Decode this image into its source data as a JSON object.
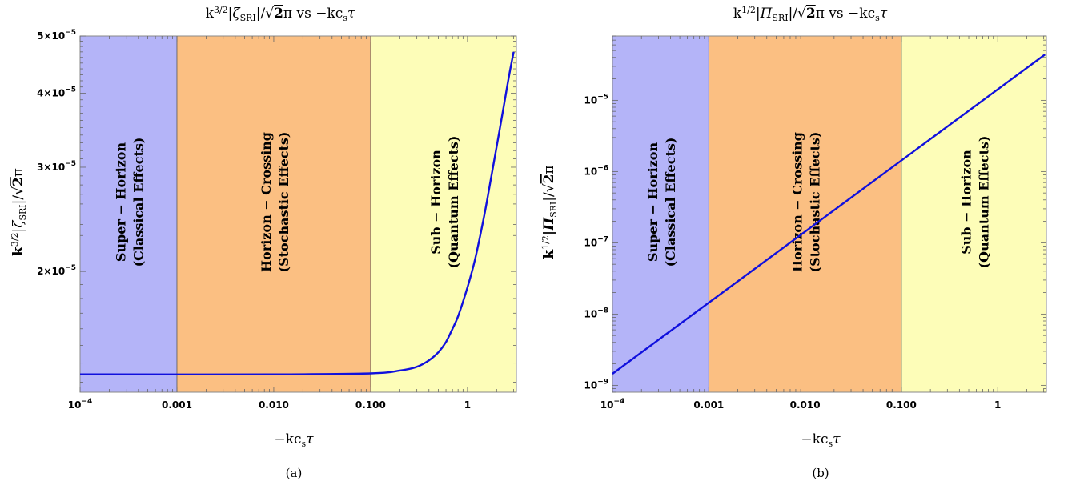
{
  "chart_data": [
    {
      "type": "line",
      "panel_label": "(a)",
      "title": "k^{3/2}|ζ_SRI|/√2π vs −kc_sτ",
      "title_parts": {
        "k": "k",
        "exp": "3/2",
        "var": "|ζ",
        "sub": "SRI",
        "tail": "|/",
        "root": "√",
        "two": "2",
        "pi": "π vs −kc",
        "cs": "s",
        "tau": "τ"
      },
      "xlabel": "−kc_sτ",
      "xlabel_parts": {
        "main": "−kc",
        "sub": "s",
        "tail": "τ"
      },
      "ylabel": "k^{3/2}|ζ_SRI|/√2π",
      "ylabel_parts": {
        "k": "k",
        "exp": "3/2",
        "var": "|ζ",
        "sub": "SRI",
        "tail": "|/",
        "root": "√",
        "two": "2",
        "pi": "π"
      },
      "xscale": "log",
      "yscale": "log",
      "xlim": [
        0.0001,
        3.2
      ],
      "ylim": [
        1.25e-05,
        5e-05
      ],
      "x_ticks": [
        {
          "value": 0.0001,
          "base": "10",
          "exp": "−4",
          "label": ""
        },
        {
          "value": 0.001,
          "label": "0.001"
        },
        {
          "value": 0.01,
          "label": "0.010"
        },
        {
          "value": 0.1,
          "label": "0.100"
        },
        {
          "value": 1,
          "label": "1"
        }
      ],
      "y_ticks": [
        {
          "value": 2e-05,
          "mant": "2",
          "times": "×",
          "base": "10",
          "exp": "−5"
        },
        {
          "value": 3e-05,
          "mant": "3",
          "times": "×",
          "base": "10",
          "exp": "−5"
        },
        {
          "value": 4e-05,
          "mant": "4",
          "times": "×",
          "base": "10",
          "exp": "−5"
        },
        {
          "value": 5e-05,
          "mant": "5",
          "times": "×",
          "base": "10",
          "exp": "−5"
        }
      ],
      "regions": [
        {
          "x0": 0.0001,
          "x1": 0.001,
          "color": "#b4b4f8",
          "line1": "Super − Horizon",
          "line2": "(Classical Effects)"
        },
        {
          "x0": 0.001,
          "x1": 0.1,
          "color": "#fbbf82",
          "line1": "Horizon − Crossing",
          "line2": "(Stochastic Effects)"
        },
        {
          "x0": 0.1,
          "x1": 3.2,
          "color": "#fdfdb8",
          "line1": "Sub − Horizon",
          "line2": "(Quantum Effects)"
        }
      ],
      "series": [
        {
          "color": "#1010dd",
          "points": [
            [
              0.0001,
              1.34e-05
            ],
            [
              0.01,
              1.34e-05
            ],
            [
              0.1,
              1.345e-05
            ],
            [
              0.2,
              1.36e-05
            ],
            [
              0.3,
              1.38e-05
            ],
            [
              0.4,
              1.415e-05
            ],
            [
              0.5,
              1.46e-05
            ],
            [
              0.6,
              1.52e-05
            ],
            [
              0.7,
              1.6e-05
            ],
            [
              0.8,
              1.68e-05
            ],
            [
              1.0,
              1.88e-05
            ],
            [
              1.2,
              2.1e-05
            ],
            [
              1.5,
              2.5e-05
            ],
            [
              1.8,
              2.95e-05
            ],
            [
              2.1,
              3.4e-05
            ],
            [
              2.4,
              3.85e-05
            ],
            [
              2.7,
              4.3e-05
            ],
            [
              3.0,
              4.7e-05
            ]
          ]
        }
      ]
    },
    {
      "type": "line",
      "panel_label": "(b)",
      "title": "k^{1/2}|Π_SRI|/√2π vs −kc_sτ",
      "title_parts": {
        "k": "k",
        "exp": "1/2",
        "var": "|Π",
        "sub": "SRI",
        "tail": "|/",
        "root": "√",
        "two": "2",
        "pi": "π vs −kc",
        "cs": "s",
        "tau": "τ"
      },
      "xlabel": "−kc_sτ",
      "xlabel_parts": {
        "main": "−kc",
        "sub": "s",
        "tail": "τ"
      },
      "ylabel": "k^{1/2}|Π_SRI|/√2π",
      "ylabel_parts": {
        "k": "k",
        "exp": "1/2",
        "var": "|Π",
        "sub": "SRI",
        "tail": "|/",
        "root": "√",
        "two": "2",
        "pi": "π"
      },
      "xscale": "log",
      "yscale": "log",
      "xlim": [
        0.0001,
        3.2
      ],
      "ylim": [
        8e-10,
        8e-05
      ],
      "x_ticks": [
        {
          "value": 0.0001,
          "base": "10",
          "exp": "−4",
          "label": ""
        },
        {
          "value": 0.001,
          "label": "0.001"
        },
        {
          "value": 0.01,
          "label": "0.010"
        },
        {
          "value": 0.1,
          "label": "0.100"
        },
        {
          "value": 1,
          "label": "1"
        }
      ],
      "y_ticks": [
        {
          "value": 1e-09,
          "base": "10",
          "exp": "−9"
        },
        {
          "value": 1e-08,
          "base": "10",
          "exp": "−8"
        },
        {
          "value": 1e-07,
          "base": "10",
          "exp": "−7"
        },
        {
          "value": 1e-06,
          "base": "10",
          "exp": "−6"
        },
        {
          "value": 1e-05,
          "base": "10",
          "exp": "−5"
        }
      ],
      "regions": [
        {
          "x0": 0.0001,
          "x1": 0.001,
          "color": "#b4b4f8",
          "line1": "Super − Horizon",
          "line2": "(Classical Effects)"
        },
        {
          "x0": 0.001,
          "x1": 0.1,
          "color": "#fbbf82",
          "line1": "Horizon − Crossing",
          "line2": "(Stochastic Effects)"
        },
        {
          "x0": 0.1,
          "x1": 3.2,
          "color": "#fdfdb8",
          "line1": "Sub − Horizon",
          "line2": "(Quantum Effects)"
        }
      ],
      "series": [
        {
          "color": "#1010dd",
          "points": [
            [
              0.0001,
              1.45e-09
            ],
            [
              3.1,
              4.4e-05
            ]
          ]
        }
      ]
    }
  ]
}
